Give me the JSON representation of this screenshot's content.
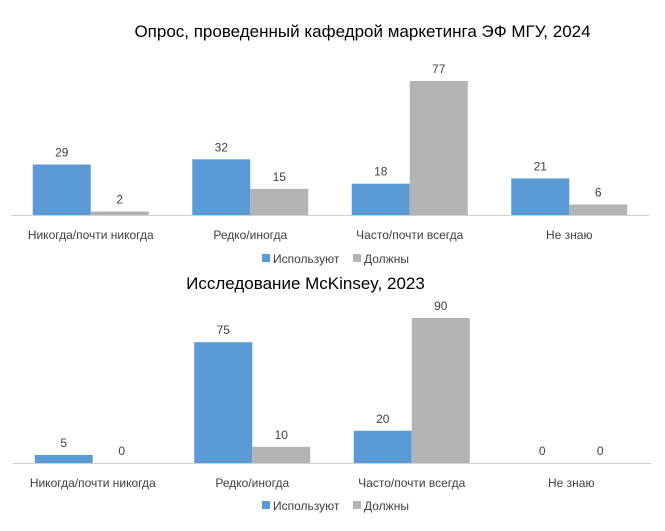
{
  "colors": {
    "series1": "#5b9bd5",
    "series2": "#b1b3b4",
    "axis": "#d0d0d0",
    "text": "#404040"
  },
  "chart_data": [
    {
      "type": "bar",
      "title": "Опрос, проведенный кафедрой маркетинга ЭФ МГУ, 2024",
      "categories": [
        "Никогда/почти никогда",
        "Редко/иногда",
        "Часто/почти всегда",
        "Не знаю"
      ],
      "series": [
        {
          "name": "Используют",
          "values": [
            29,
            32,
            18,
            21
          ]
        },
        {
          "name": "Должны",
          "values": [
            2,
            15,
            77,
            6
          ]
        }
      ],
      "ylim": [
        0,
        77
      ],
      "legend": "bottom",
      "grid": false
    },
    {
      "type": "bar",
      "title": "Исследование McKinsey, 2023",
      "categories": [
        "Никогда/почти никогда",
        "Редко/иногда",
        "Часто/почти всегда",
        "Не знаю"
      ],
      "series": [
        {
          "name": "Используют",
          "values": [
            5,
            75,
            20,
            0
          ]
        },
        {
          "name": "Должны",
          "values": [
            0,
            10,
            90,
            0
          ]
        }
      ],
      "ylim": [
        0,
        90
      ],
      "legend": "bottom",
      "grid": false
    }
  ]
}
